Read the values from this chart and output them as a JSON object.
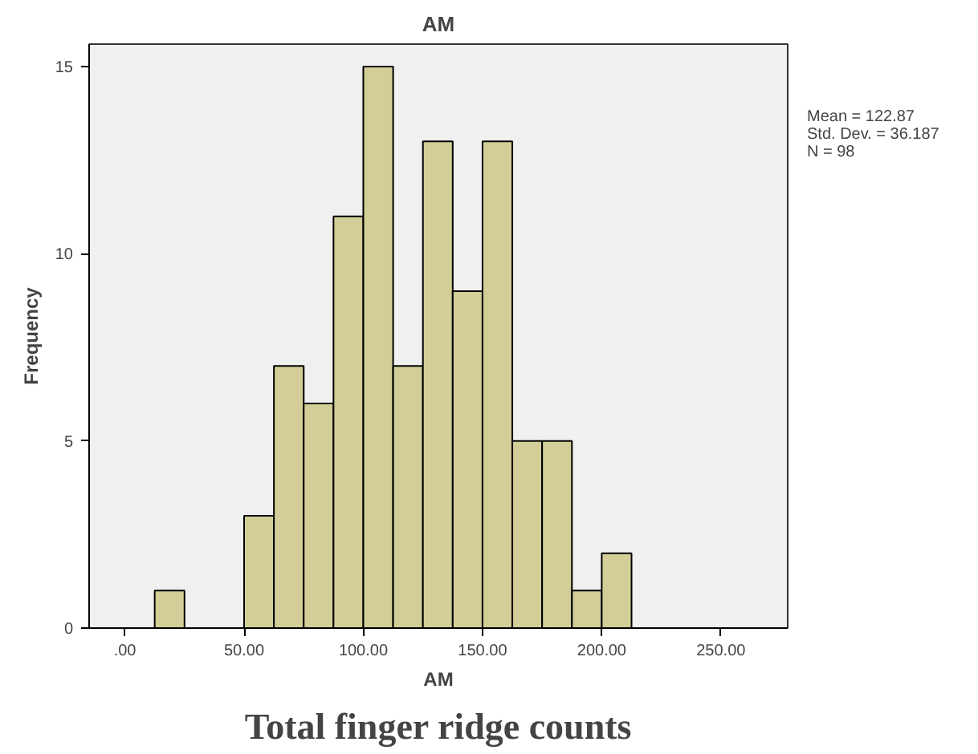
{
  "chart_data": {
    "type": "histogram",
    "title": "AM",
    "xlabel": "AM",
    "ylabel": "Frequency",
    "bins": [
      12.5,
      25,
      37.5,
      50,
      62.5,
      75,
      87.5,
      100,
      112.5,
      125,
      137.5,
      150,
      162.5,
      175,
      187.5,
      200,
      212.5
    ],
    "values": [
      1,
      0,
      0,
      3,
      7,
      6,
      11,
      15,
      7,
      13,
      9,
      13,
      5,
      5,
      1,
      2
    ],
    "color": "#d3ce97",
    "xlim": [
      -15,
      278
    ],
    "ylim": [
      0,
      15.6
    ],
    "xticks": [
      {
        "value": 0,
        "label": ".00"
      },
      {
        "value": 50,
        "label": "50.00"
      },
      {
        "value": 100,
        "label": "100.00"
      },
      {
        "value": 150,
        "label": "150.00"
      },
      {
        "value": 200,
        "label": "200.00"
      },
      {
        "value": 250,
        "label": "250.00"
      }
    ],
    "yticks": [
      0,
      5,
      10,
      15
    ],
    "grid": false,
    "annotations": [
      "Mean = 122.87",
      "Std. Dev. = 36.187",
      "N = 98",
      "Total finger ridge counts"
    ]
  }
}
